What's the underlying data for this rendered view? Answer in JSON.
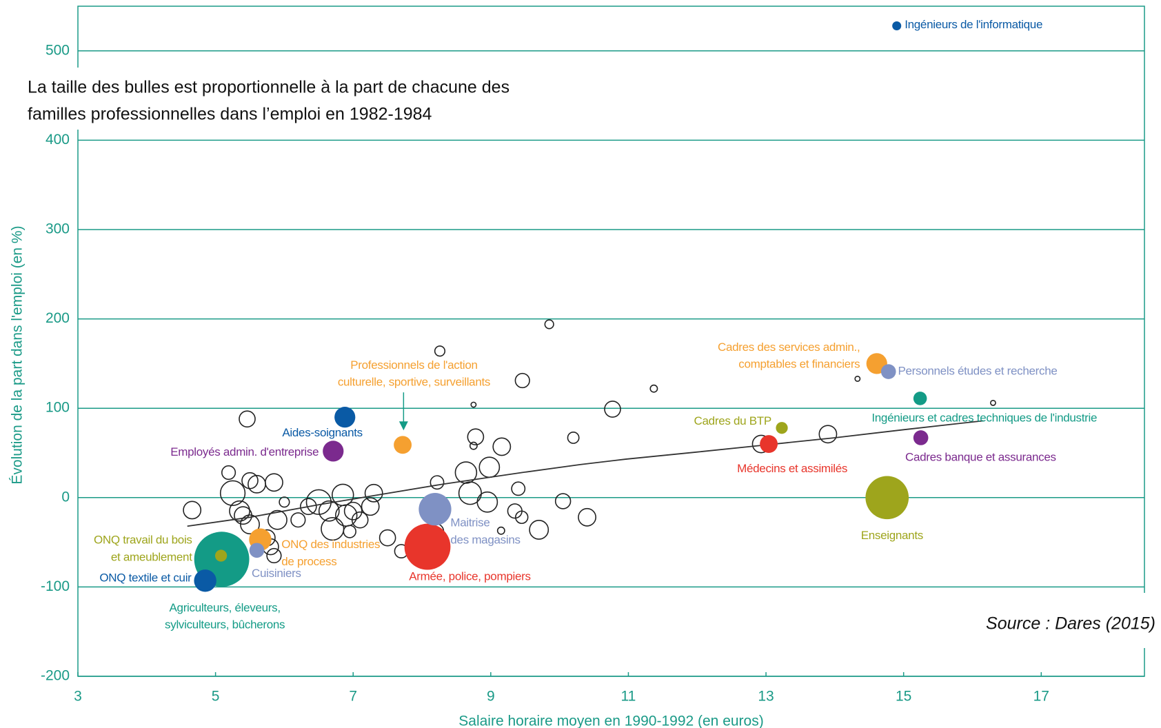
{
  "chart_data": {
    "type": "bubble",
    "note": [
      "La taille des bulles est proportionnelle à la part de chacune des",
      "familles professionnelles dans l’emploi en 1982-1984"
    ],
    "source": "Source : Dares (2015)",
    "xlabel": "Salaire horaire moyen en 1990-1992 (en euros)",
    "ylabel": "Évolution de la part dans l'emploi (en %)",
    "xlim": [
      3,
      18.5
    ],
    "xticks": [
      3,
      5,
      7,
      9,
      11,
      13,
      15,
      17
    ],
    "ylim": [
      -200,
      550
    ],
    "yticks": [
      -200,
      -100,
      0,
      100,
      200,
      300,
      400,
      500
    ],
    "grid": true,
    "axis_color": "#1a9a87",
    "trend": {
      "color": "#333333",
      "x": [
        4.59,
        5.5,
        6.5,
        7.28,
        8.3,
        9.45,
        10.3,
        10.96,
        12,
        13,
        14,
        15,
        16.16
      ],
      "values": [
        -32,
        -22,
        -8,
        2,
        15,
        28,
        37,
        43,
        51,
        59,
        67,
        76,
        86
      ]
    },
    "series": [
      {
        "hollow": true,
        "color": "#222222",
        "x": [
          4.66,
          5.46,
          5.19,
          5.5,
          5.25,
          5.35,
          5.4,
          5.5,
          5.6,
          5.85,
          5.9,
          5.8,
          5.85,
          5.75,
          6.35,
          6.5,
          6.65,
          6.85,
          6.9,
          7.0,
          7.1,
          7.25,
          7.3,
          6.95,
          6.7,
          7.5,
          7.7,
          6.2,
          6.0,
          8.26,
          8.75,
          8.78,
          8.75,
          9.46,
          9.16,
          8.64,
          8.98,
          8.7,
          9.4,
          9.35,
          9.45,
          8.95,
          9.15,
          8.22,
          8.2,
          9.7,
          9.85,
          10.2,
          10.05,
          10.4,
          10.77,
          11.37,
          12.93,
          13.9,
          14.33,
          16.3
        ],
        "values": [
          -14,
          88,
          28,
          19,
          5,
          -15,
          -20,
          -30,
          15,
          17,
          -25,
          -55,
          -65,
          -45,
          -10,
          -5,
          -15,
          3,
          -20,
          -15,
          -25,
          -10,
          5,
          -38,
          -35,
          -45,
          -60,
          -25,
          -5,
          164,
          104,
          68,
          58,
          131,
          57,
          28,
          34,
          5,
          10,
          -15,
          -22,
          -5,
          -37,
          17,
          -38,
          -36,
          194,
          67,
          -4,
          -22,
          99,
          122,
          60,
          71,
          133,
          106
        ],
        "sizes": [
          0.6,
          0.5,
          0.36,
          0.5,
          1.2,
          0.8,
          0.6,
          0.7,
          0.6,
          0.6,
          0.7,
          0.5,
          0.4,
          0.5,
          0.5,
          1.2,
          0.8,
          0.9,
          0.9,
          0.6,
          0.5,
          0.6,
          0.6,
          0.3,
          1.0,
          0.5,
          0.35,
          0.4,
          0.2,
          0.2,
          0.05,
          0.5,
          0.1,
          0.4,
          0.6,
          0.9,
          0.8,
          1.0,
          0.35,
          0.4,
          0.3,
          0.8,
          0.1,
          0.35,
          0.5,
          0.7,
          0.15,
          0.25,
          0.45,
          0.6,
          0.5,
          0.1,
          0.6,
          0.6,
          0.05,
          0.05
        ]
      },
      {
        "name": [
          "Ingénieurs de l'informatique"
        ],
        "color": "#0a5aa5",
        "x": [
          14.9
        ],
        "values": [
          528
        ],
        "sizes": [
          0.16
        ]
      },
      {
        "name": [
          "Aides-soignants"
        ],
        "color": "#0a5aa5",
        "x": [
          6.88
        ],
        "values": [
          90
        ],
        "sizes": [
          0.86
        ]
      },
      {
        "name": [
          "Employés admin. d'entreprise"
        ],
        "color": "#7b2a8e",
        "x": [
          6.71
        ],
        "values": [
          52
        ],
        "sizes": [
          0.86
        ]
      },
      {
        "name": [
          "Professionnels de l'action",
          "culturelle, sportive, surveillants"
        ],
        "color": "#f5a030",
        "x": [
          7.72
        ],
        "values": [
          59
        ],
        "sizes": [
          0.63
        ]
      },
      {
        "name": [
          "Agriculteurs, éleveurs,",
          "sylviculteurs, bûcherons"
        ],
        "color": "#139b86",
        "x": [
          5.09
        ],
        "values": [
          -69
        ],
        "sizes": [
          6.0
        ]
      },
      {
        "name": [
          "ONQ travail du bois",
          "et ameublement"
        ],
        "color": "#9ea51c",
        "x": [
          5.08
        ],
        "values": [
          -65
        ],
        "sizes": [
          0.28
        ]
      },
      {
        "name": [
          "ONQ textile et cuir"
        ],
        "color": "#0a5aa5",
        "x": [
          4.85
        ],
        "values": [
          -93
        ],
        "sizes": [
          0.99
        ]
      },
      {
        "name": [
          "ONQ des industries",
          "de process"
        ],
        "color": "#f5a030",
        "x": [
          5.65
        ],
        "values": [
          -47
        ],
        "sizes": [
          0.99
        ]
      },
      {
        "name": [
          "Cuisiniers"
        ],
        "color": "#7f91c4",
        "x": [
          5.6
        ],
        "values": [
          -59
        ],
        "sizes": [
          0.44
        ]
      },
      {
        "name": [
          "Armée, police, pompiers"
        ],
        "color": "#e8352b",
        "x": [
          8.08
        ],
        "values": [
          -55
        ],
        "sizes": [
          4.2
        ]
      },
      {
        "name": [
          "Maitrise",
          "des magasins"
        ],
        "color": "#7f91c4",
        "x": [
          8.19
        ],
        "values": [
          -13
        ],
        "sizes": [
          2.1
        ]
      },
      {
        "name": [
          "Cadres du BTP"
        ],
        "color": "#9ea51c",
        "x": [
          13.23
        ],
        "values": [
          78
        ],
        "sizes": [
          0.28
        ]
      },
      {
        "name": [
          "Médecins et assimilés"
        ],
        "color": "#e8352b",
        "x": [
          13.04
        ],
        "values": [
          60
        ],
        "sizes": [
          0.63
        ]
      },
      {
        "name": [
          "Cadres des services admin.,",
          "comptables et financiers"
        ],
        "color": "#f5a030",
        "x": [
          14.61
        ],
        "values": [
          150
        ],
        "sizes": [
          0.86
        ]
      },
      {
        "name": [
          "Personnels études et recherche"
        ],
        "color": "#7f91c4",
        "x": [
          14.78
        ],
        "values": [
          141
        ],
        "sizes": [
          0.44
        ]
      },
      {
        "name": [
          "Ingénieurs et cadres techniques de l'industrie"
        ],
        "color": "#139b86",
        "x": [
          15.24
        ],
        "values": [
          111
        ],
        "sizes": [
          0.36
        ]
      },
      {
        "name": [
          "Cadres banque et assurances"
        ],
        "color": "#7b2a8e",
        "x": [
          15.25
        ],
        "values": [
          67
        ],
        "sizes": [
          0.44
        ]
      },
      {
        "name": [
          "Enseignants"
        ],
        "color": "#9ea51c",
        "x": [
          14.76
        ],
        "values": [
          0
        ],
        "sizes": [
          3.7
        ]
      }
    ]
  }
}
